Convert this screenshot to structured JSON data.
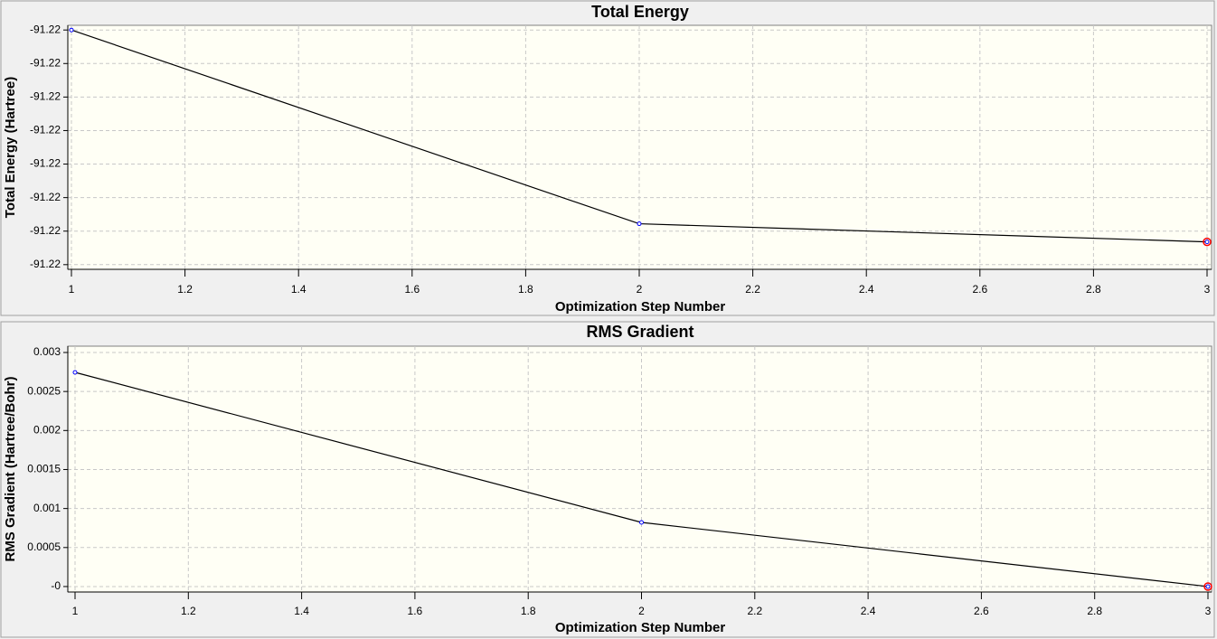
{
  "chart_data": [
    {
      "type": "line",
      "title": "Total Energy",
      "x_label": "Optimization Step Number",
      "y_label": "Total Energy (Hartree)",
      "x": [
        1,
        2,
        3
      ],
      "values": [
        -91.2195,
        -91.219789,
        -91.219816
      ],
      "color": "#000000",
      "marker_color": "#0000ff",
      "current_marker_color": "#ff0000",
      "xlim": [
        1,
        3
      ],
      "xticks": [
        1,
        1.2,
        1.4,
        1.6,
        1.8,
        2,
        2.2,
        2.4,
        2.6,
        2.8,
        3
      ],
      "ylim": [
        -91.219857,
        -91.219493
      ],
      "yticks": [
        {
          "value": -91.2195,
          "label": "-91.22"
        },
        {
          "value": -91.21955,
          "label": "-91.22"
        },
        {
          "value": -91.2196,
          "label": "-91.22"
        },
        {
          "value": -91.21965,
          "label": "-91.22"
        },
        {
          "value": -91.2197,
          "label": "-91.22"
        },
        {
          "value": -91.21975,
          "label": "-91.22"
        },
        {
          "value": -91.2198,
          "label": "-91.22"
        },
        {
          "value": -91.21985,
          "label": "-91.22"
        }
      ],
      "grid": true
    },
    {
      "type": "line",
      "title": "RMS Gradient",
      "x_label": "Optimization Step Number",
      "y_label": "RMS Gradient (Hartree/Bohr)",
      "x": [
        1,
        2,
        3
      ],
      "values": [
        0.002745,
        0.000822,
        0
      ],
      "color": "#000000",
      "marker_color": "#0000ff",
      "current_marker_color": "#ff0000",
      "xlim": [
        1,
        3
      ],
      "xticks": [
        1,
        1.2,
        1.4,
        1.6,
        1.8,
        2,
        2.2,
        2.4,
        2.6,
        2.8,
        3
      ],
      "ylim": [
        -7e-05,
        0.003081
      ],
      "yticks": [
        {
          "value": 0,
          "label": "-0"
        },
        0.0005,
        0.001,
        0.0015,
        0.002,
        0.0025,
        0.003
      ],
      "grid": true
    }
  ]
}
